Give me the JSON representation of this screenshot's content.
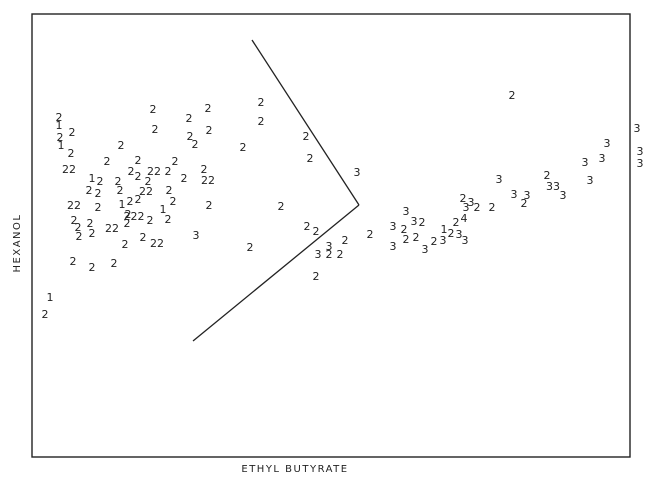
{
  "chart_data": {
    "type": "scatter",
    "xlabel": "ETHYL BUTYRATE",
    "ylabel": "HEXANOL",
    "grid": false,
    "xlim": [
      0,
      650
    ],
    "ylim": [
      0,
      460
    ],
    "points": [
      {
        "x": 45,
        "y": 165,
        "label": "2"
      },
      {
        "x": 50,
        "y": 182,
        "label": "1"
      },
      {
        "x": 73,
        "y": 218,
        "label": "2"
      },
      {
        "x": 92,
        "y": 212,
        "label": "2"
      },
      {
        "x": 114,
        "y": 216,
        "label": "2"
      },
      {
        "x": 125,
        "y": 235,
        "label": "2"
      },
      {
        "x": 143,
        "y": 242,
        "label": "2"
      },
      {
        "x": 157,
        "y": 236,
        "label": "22"
      },
      {
        "x": 60,
        "y": 342,
        "label": "2"
      },
      {
        "x": 61,
        "y": 334,
        "label": "1"
      },
      {
        "x": 71,
        "y": 326,
        "label": "2"
      },
      {
        "x": 69,
        "y": 310,
        "label": "22"
      },
      {
        "x": 107,
        "y": 318,
        "label": "2"
      },
      {
        "x": 92,
        "y": 301,
        "label": "1"
      },
      {
        "x": 100,
        "y": 298,
        "label": "2"
      },
      {
        "x": 118,
        "y": 298,
        "label": "2"
      },
      {
        "x": 155,
        "y": 350,
        "label": "2"
      },
      {
        "x": 190,
        "y": 343,
        "label": "2"
      },
      {
        "x": 209,
        "y": 349,
        "label": "2"
      },
      {
        "x": 195,
        "y": 335,
        "label": "2"
      },
      {
        "x": 243,
        "y": 332,
        "label": "2"
      },
      {
        "x": 261,
        "y": 358,
        "label": "2"
      },
      {
        "x": 121,
        "y": 334,
        "label": "2"
      },
      {
        "x": 138,
        "y": 319,
        "label": "2"
      },
      {
        "x": 131,
        "y": 308,
        "label": "2"
      },
      {
        "x": 138,
        "y": 303,
        "label": "2"
      },
      {
        "x": 154,
        "y": 308,
        "label": "22"
      },
      {
        "x": 175,
        "y": 318,
        "label": "2"
      },
      {
        "x": 168,
        "y": 308,
        "label": "2"
      },
      {
        "x": 184,
        "y": 301,
        "label": "2"
      },
      {
        "x": 204,
        "y": 310,
        "label": "2"
      },
      {
        "x": 208,
        "y": 299,
        "label": "22"
      },
      {
        "x": 148,
        "y": 298,
        "label": "2"
      },
      {
        "x": 89,
        "y": 289,
        "label": "2"
      },
      {
        "x": 98,
        "y": 286,
        "label": "2"
      },
      {
        "x": 120,
        "y": 289,
        "label": "2"
      },
      {
        "x": 146,
        "y": 288,
        "label": "22"
      },
      {
        "x": 169,
        "y": 289,
        "label": "2"
      },
      {
        "x": 74,
        "y": 274,
        "label": "22"
      },
      {
        "x": 98,
        "y": 272,
        "label": "2"
      },
      {
        "x": 122,
        "y": 275,
        "label": "1"
      },
      {
        "x": 130,
        "y": 278,
        "label": "2"
      },
      {
        "x": 138,
        "y": 280,
        "label": "2"
      },
      {
        "x": 163,
        "y": 270,
        "label": "1"
      },
      {
        "x": 173,
        "y": 278,
        "label": "2"
      },
      {
        "x": 209,
        "y": 274,
        "label": "2"
      },
      {
        "x": 281,
        "y": 273,
        "label": "2"
      },
      {
        "x": 134,
        "y": 263,
        "label": "222"
      },
      {
        "x": 128,
        "y": 265,
        "label": "2"
      },
      {
        "x": 150,
        "y": 259,
        "label": "2"
      },
      {
        "x": 168,
        "y": 260,
        "label": "2"
      },
      {
        "x": 74,
        "y": 259,
        "label": "2"
      },
      {
        "x": 78,
        "y": 252,
        "label": "2"
      },
      {
        "x": 79,
        "y": 243,
        "label": "2"
      },
      {
        "x": 92,
        "y": 246,
        "label": "2"
      },
      {
        "x": 90,
        "y": 256,
        "label": "2"
      },
      {
        "x": 112,
        "y": 251,
        "label": "22"
      },
      {
        "x": 127,
        "y": 256,
        "label": "2"
      },
      {
        "x": 196,
        "y": 244,
        "label": "3"
      },
      {
        "x": 250,
        "y": 232,
        "label": "2"
      },
      {
        "x": 306,
        "y": 343,
        "label": "2"
      },
      {
        "x": 310,
        "y": 321,
        "label": "2"
      },
      {
        "x": 357,
        "y": 307,
        "label": "3"
      },
      {
        "x": 307,
        "y": 253,
        "label": "2"
      },
      {
        "x": 316,
        "y": 248,
        "label": "2"
      },
      {
        "x": 329,
        "y": 233,
        "label": "3"
      },
      {
        "x": 318,
        "y": 225,
        "label": "3"
      },
      {
        "x": 329,
        "y": 225,
        "label": "2"
      },
      {
        "x": 340,
        "y": 225,
        "label": "2"
      },
      {
        "x": 345,
        "y": 239,
        "label": "2"
      },
      {
        "x": 316,
        "y": 203,
        "label": "2"
      },
      {
        "x": 370,
        "y": 245,
        "label": "2"
      },
      {
        "x": 393,
        "y": 233,
        "label": "3"
      },
      {
        "x": 393,
        "y": 253,
        "label": "3"
      },
      {
        "x": 404,
        "y": 250,
        "label": "2"
      },
      {
        "x": 406,
        "y": 268,
        "label": "3"
      },
      {
        "x": 414,
        "y": 258,
        "label": "3"
      },
      {
        "x": 422,
        "y": 257,
        "label": "2"
      },
      {
        "x": 406,
        "y": 240,
        "label": "2"
      },
      {
        "x": 416,
        "y": 242,
        "label": "2"
      },
      {
        "x": 425,
        "y": 230,
        "label": "3"
      },
      {
        "x": 434,
        "y": 238,
        "label": "2"
      },
      {
        "x": 443,
        "y": 239,
        "label": "3"
      },
      {
        "x": 444,
        "y": 250,
        "label": "1"
      },
      {
        "x": 451,
        "y": 246,
        "label": "2"
      },
      {
        "x": 459,
        "y": 245,
        "label": "3"
      },
      {
        "x": 465,
        "y": 239,
        "label": "3"
      },
      {
        "x": 456,
        "y": 257,
        "label": "2"
      },
      {
        "x": 464,
        "y": 261,
        "label": "4"
      },
      {
        "x": 463,
        "y": 281,
        "label": "2"
      },
      {
        "x": 471,
        "y": 277,
        "label": "3"
      },
      {
        "x": 466,
        "y": 272,
        "label": "3"
      },
      {
        "x": 477,
        "y": 272,
        "label": "2"
      },
      {
        "x": 492,
        "y": 272,
        "label": "2"
      },
      {
        "x": 499,
        "y": 300,
        "label": "3"
      },
      {
        "x": 514,
        "y": 285,
        "label": "3"
      },
      {
        "x": 524,
        "y": 276,
        "label": "2"
      },
      {
        "x": 527,
        "y": 284,
        "label": "3"
      },
      {
        "x": 547,
        "y": 304,
        "label": "2"
      },
      {
        "x": 553,
        "y": 293,
        "label": "33"
      },
      {
        "x": 563,
        "y": 284,
        "label": "3"
      },
      {
        "x": 590,
        "y": 299,
        "label": "3"
      },
      {
        "x": 585,
        "y": 317,
        "label": "3"
      },
      {
        "x": 602,
        "y": 321,
        "label": "3"
      },
      {
        "x": 607,
        "y": 336,
        "label": "3"
      },
      {
        "x": 637,
        "y": 351,
        "label": "3"
      },
      {
        "x": 640,
        "y": 328,
        "label": "3"
      },
      {
        "x": 640,
        "y": 316,
        "label": "3"
      },
      {
        "x": 512,
        "y": 384,
        "label": "2"
      },
      {
        "x": 59,
        "y": 362,
        "label": "2"
      },
      {
        "x": 59,
        "y": 354,
        "label": "1"
      },
      {
        "x": 72,
        "y": 347,
        "label": "2"
      },
      {
        "x": 153,
        "y": 370,
        "label": "2"
      },
      {
        "x": 189,
        "y": 361,
        "label": "2"
      },
      {
        "x": 208,
        "y": 371,
        "label": "2"
      },
      {
        "x": 261,
        "y": 377,
        "label": "2"
      }
    ],
    "boundary": [
      [
        [
          252,
          439
        ],
        [
          359,
          274
        ]
      ],
      [
        [
          359,
          274
        ],
        [
          193,
          138
        ]
      ]
    ]
  }
}
